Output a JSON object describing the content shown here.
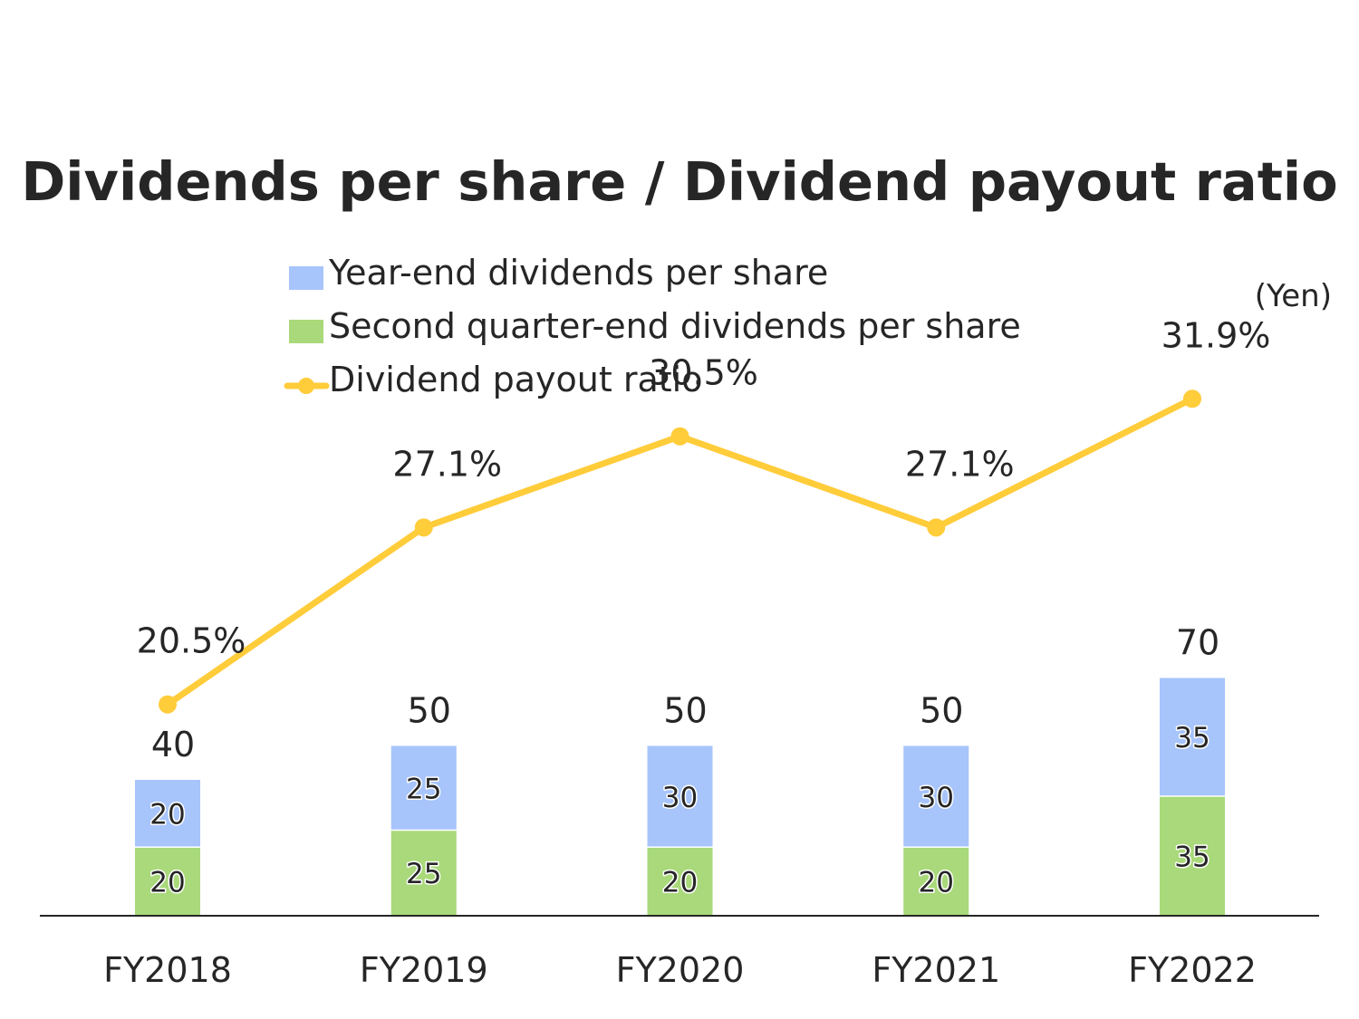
{
  "chart_data": {
    "type": "bar",
    "stacked": true,
    "title": "Dividends per share / Dividend payout ratio",
    "unit": "(Yen)",
    "categories": [
      "FY2018",
      "FY2019",
      "FY2020",
      "FY2021",
      "FY2022"
    ],
    "series": [
      {
        "name": "Second quarter-end dividends per share",
        "type": "bar",
        "color": "#a9d97a",
        "values": [
          20,
          25,
          20,
          20,
          35
        ]
      },
      {
        "name": "Year-end dividends per share",
        "type": "bar",
        "color": "#a7c4fb",
        "values": [
          20,
          25,
          30,
          30,
          35
        ]
      },
      {
        "name": "Dividend payout ratio",
        "type": "line",
        "color": "#ffcc3a",
        "values": [
          20.5,
          27.1,
          30.5,
          27.1,
          31.9
        ],
        "labels": [
          "20.5%",
          "27.1%",
          "30.5%",
          "27.1%",
          "31.9%"
        ]
      }
    ],
    "totals": [
      40,
      50,
      50,
      50,
      70
    ],
    "legend": {
      "position": "top",
      "order": [
        "Year-end dividends per share",
        "Second quarter-end dividends per share",
        "Dividend payout ratio"
      ]
    },
    "grid": false
  }
}
